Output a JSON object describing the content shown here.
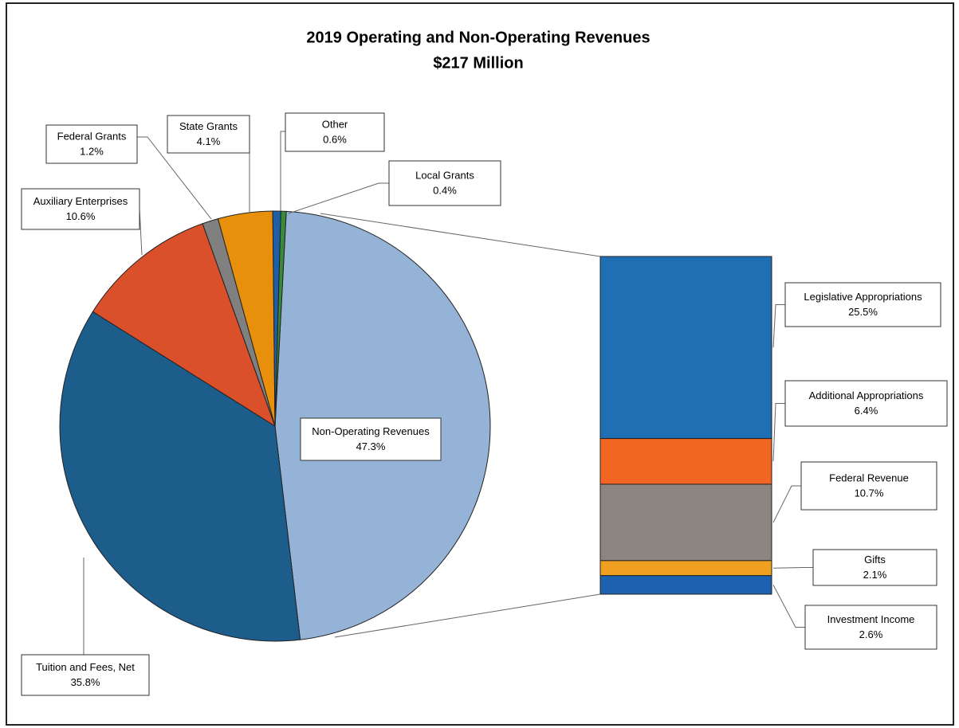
{
  "chart_data": {
    "type": "pie",
    "title": "2019 Operating and Non-Operating Revenues",
    "subtitle": "$217 Million",
    "categories": [
      "Non-Operating Revenues",
      "Tuition and Fees, Net",
      "Auxiliary Enterprises",
      "Federal Grants",
      "State Grants",
      "Other",
      "Local Grants"
    ],
    "values": [
      47.3,
      35.8,
      10.6,
      1.2,
      4.1,
      0.6,
      0.4
    ],
    "value_labels": [
      "47.3%",
      "35.8%",
      "10.6%",
      "1.2%",
      "4.1%",
      "0.6%",
      "0.4%"
    ],
    "colors": [
      "#95b3d7",
      "#1c5d8c",
      "#d9502a",
      "#808080",
      "#e8900c",
      "#1f5fa8",
      "#3a8a3a"
    ],
    "breakdown": {
      "type": "bar",
      "categories": [
        "Legislative Appropriations",
        "Additional Appropriations",
        "Federal Revenue",
        "Gifts",
        "Investment Income"
      ],
      "values": [
        25.5,
        6.4,
        10.7,
        2.1,
        2.6
      ],
      "value_labels": [
        "25.5%",
        "6.4%",
        "10.7%",
        "2.1%",
        "2.6%"
      ],
      "colors": [
        "#1f6fb4",
        "#f26522",
        "#8c8580",
        "#f0a020",
        "#1c62b0"
      ]
    }
  }
}
